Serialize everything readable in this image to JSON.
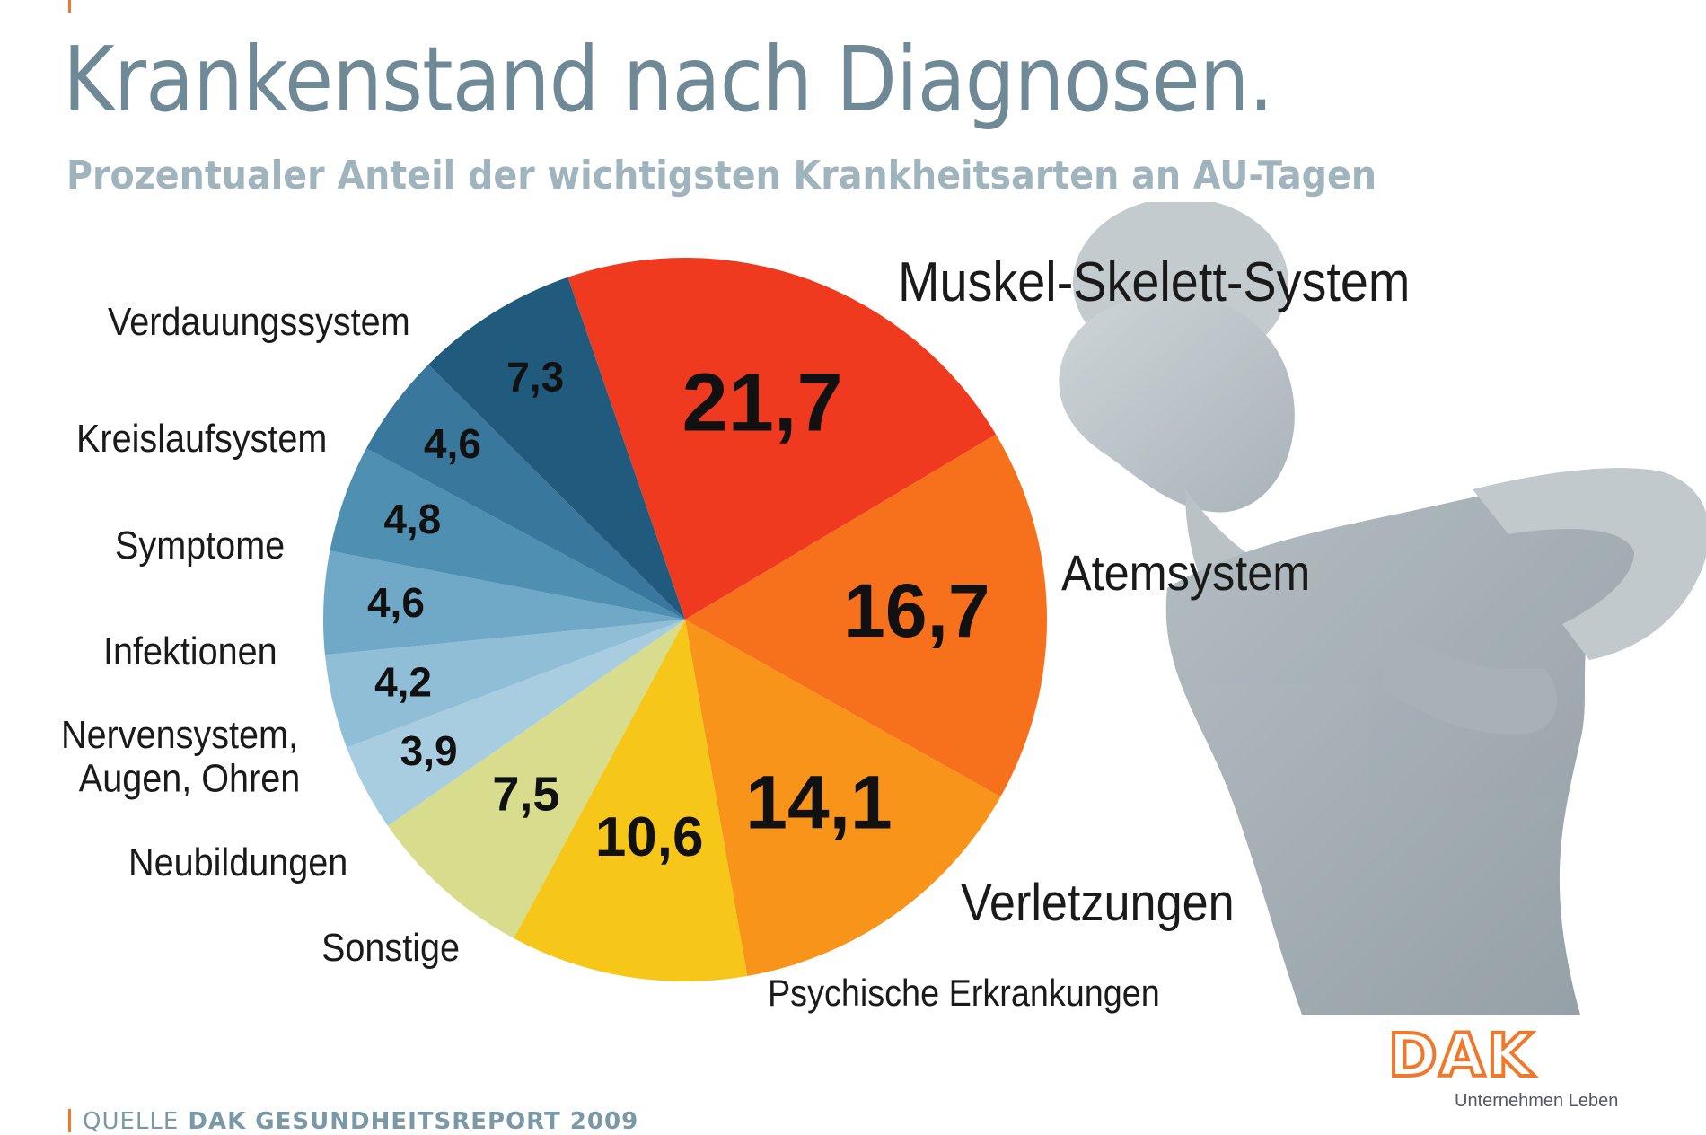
{
  "header": {
    "title": "Krankenstand nach Diagnosen.",
    "subtitle": "Prozentualer Anteil der wichtigsten Krankheitsarten an AU-Tagen"
  },
  "footer": {
    "source_prefix": "QUELLE",
    "source_name": "DAK GESUNDHEITSREPORT 2009"
  },
  "logo": {
    "wordmark": "DAK",
    "tagline": "Unternehmen Leben"
  },
  "chart_data": {
    "type": "pie",
    "title": "Krankenstand nach Diagnosen.",
    "subtitle": "Prozentualer Anteil der wichtigsten Krankheitsarten an AU-Tagen",
    "unit": "%",
    "start_direction": "top, clockwise",
    "slices": [
      {
        "label": "Muskel-Skelett-System",
        "value": 21.7,
        "value_label": "21,7",
        "color": "#f03a1f"
      },
      {
        "label": "Atemsystem",
        "value": 16.7,
        "value_label": "16,7",
        "color": "#f7701c"
      },
      {
        "label": "Verletzungen",
        "value": 14.1,
        "value_label": "14,1",
        "color": "#f9941a"
      },
      {
        "label": "Psychische Erkrankungen",
        "value": 10.6,
        "value_label": "10,6",
        "color": "#f6c619"
      },
      {
        "label": "Sonstige",
        "value": 7.5,
        "value_label": "7,5",
        "color": "#d7dd8c"
      },
      {
        "label": "Neubildungen",
        "value": 3.9,
        "value_label": "3,9",
        "color": "#a9cde0"
      },
      {
        "label": "Nervensystem, Augen, Ohren",
        "value": 4.2,
        "value_label": "4,2",
        "color": "#8fbed6"
      },
      {
        "label": "Infektionen",
        "value": 4.6,
        "value_label": "4,6",
        "color": "#70a9c8"
      },
      {
        "label": "Symptome",
        "value": 4.8,
        "value_label": "4,8",
        "color": "#4f8fb2"
      },
      {
        "label": "Kreislaufsystem",
        "value": 4.6,
        "value_label": "4,6",
        "color": "#3a779c"
      },
      {
        "label": "Verdauungssystem",
        "value": 7.3,
        "value_label": "7,3",
        "color": "#205a7d"
      }
    ]
  }
}
